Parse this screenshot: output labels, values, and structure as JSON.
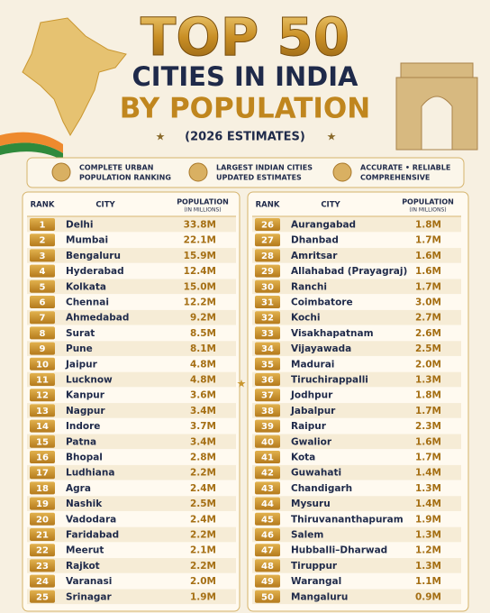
{
  "header": {
    "title": "TOP 50",
    "line2": "CITIES IN INDIA",
    "line3": "BY POPULATION",
    "subtitle": "(2026 ESTIMATES)"
  },
  "features": [
    [
      "COMPLETE URBAN",
      "POPULATION RANKING"
    ],
    [
      "LARGEST INDIAN CITIES",
      "UPDATED ESTIMATES"
    ],
    [
      "ACCURATE • RELIABLE",
      "COMPREHENSIVE"
    ]
  ],
  "tables": [
    {
      "columns": {
        "rank": "RANK",
        "city": "CITY",
        "population": "POPULATION",
        "unit": "(IN MILLIONS)"
      },
      "rows": [
        [
          1,
          "Delhi",
          "33.8M"
        ],
        [
          2,
          "Mumbai",
          "22.1M"
        ],
        [
          3,
          "Bengaluru",
          "15.9M"
        ],
        [
          4,
          "Hyderabad",
          "12.4M"
        ],
        [
          5,
          "Kolkata",
          "15.0M"
        ],
        [
          6,
          "Chennai",
          "12.2M"
        ],
        [
          7,
          "Ahmedabad",
          "9.2M"
        ],
        [
          8,
          "Surat",
          "8.5M"
        ],
        [
          9,
          "Pune",
          "8.1M"
        ],
        [
          10,
          "Jaipur",
          "4.8M"
        ],
        [
          11,
          "Lucknow",
          "4.8M"
        ],
        [
          12,
          "Kanpur",
          "3.6M"
        ],
        [
          13,
          "Nagpur",
          "3.4M"
        ],
        [
          14,
          "Indore",
          "3.7M"
        ],
        [
          15,
          "Patna",
          "3.4M"
        ],
        [
          16,
          "Bhopal",
          "2.8M"
        ],
        [
          17,
          "Ludhiana",
          "2.2M"
        ],
        [
          18,
          "Agra",
          "2.4M"
        ],
        [
          19,
          "Nashik",
          "2.5M"
        ],
        [
          20,
          "Vadodara",
          "2.4M"
        ],
        [
          21,
          "Faridabad",
          "2.2M"
        ],
        [
          22,
          "Meerut",
          "2.1M"
        ],
        [
          23,
          "Rajkot",
          "2.2M"
        ],
        [
          24,
          "Varanasi",
          "2.0M"
        ],
        [
          25,
          "Srinagar",
          "1.9M"
        ]
      ]
    },
    {
      "columns": {
        "rank": "RANK",
        "city": "CITY",
        "population": "POPULATION",
        "unit": "(IN MILLIONS)"
      },
      "rows": [
        [
          26,
          "Aurangabad",
          "1.8M"
        ],
        [
          27,
          "Dhanbad",
          "1.7M"
        ],
        [
          28,
          "Amritsar",
          "1.6M"
        ],
        [
          29,
          "Allahabad (Prayagraj)",
          "1.6M"
        ],
        [
          30,
          "Ranchi",
          "1.7M"
        ],
        [
          31,
          "Coimbatore",
          "3.0M"
        ],
        [
          32,
          "Kochi",
          "2.7M"
        ],
        [
          33,
          "Visakhapatnam",
          "2.6M"
        ],
        [
          34,
          "Vijayawada",
          "2.5M"
        ],
        [
          35,
          "Madurai",
          "2.0M"
        ],
        [
          36,
          "Tiruchirappalli",
          "1.3M"
        ],
        [
          37,
          "Jodhpur",
          "1.8M"
        ],
        [
          38,
          "Jabalpur",
          "1.7M"
        ],
        [
          39,
          "Raipur",
          "2.3M"
        ],
        [
          40,
          "Gwalior",
          "1.6M"
        ],
        [
          41,
          "Kota",
          "1.7M"
        ],
        [
          42,
          "Guwahati",
          "1.4M"
        ],
        [
          43,
          "Chandigarh",
          "1.3M"
        ],
        [
          44,
          "Mysuru",
          "1.4M"
        ],
        [
          45,
          "Thiruvananthapuram",
          "1.9M"
        ],
        [
          46,
          "Salem",
          "1.3M"
        ],
        [
          47,
          "Hubballi–Dharwad",
          "1.2M"
        ],
        [
          48,
          "Tiruppur",
          "1.3M"
        ],
        [
          49,
          "Warangal",
          "1.1M"
        ],
        [
          50,
          "Mangaluru",
          "0.9M"
        ]
      ]
    }
  ]
}
